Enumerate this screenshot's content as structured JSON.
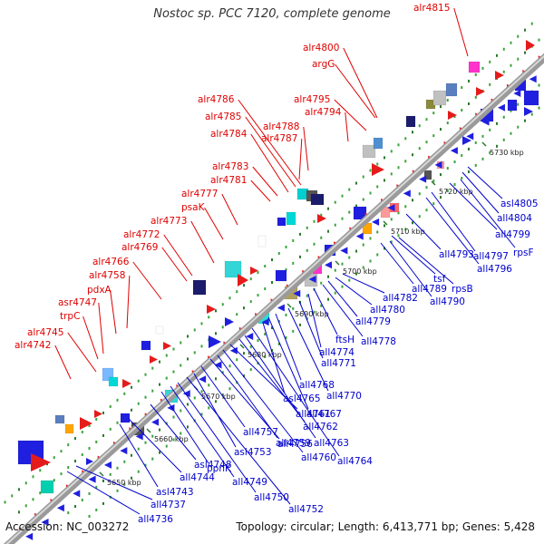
{
  "title": "Nostoc sp. PCC 7120, complete genome",
  "footer": {
    "accession": "Accession: NC_003272",
    "summary": "Topology: circular; Length: 6,413,771 bp; Genes: 5,428"
  },
  "colors": {
    "forward_label": "#e00000",
    "reverse_label": "#0000cc",
    "backbone": "#8a8a8a"
  },
  "scale_labels": [
    "5650 kbp",
    "5660 kbp",
    "5670 kbp",
    "5680 kbp",
    "5690 kbp",
    "5700 kbp",
    "5710 kbp",
    "5720 kbp",
    "5730 kbp"
  ],
  "forward_genes": [
    "alr4742",
    "alr4745",
    "trpC",
    "asr4747",
    "pdxA",
    "alr4758",
    "alr4766",
    "alr4769",
    "alr4772",
    "alr4773",
    "psaK",
    "alr4777",
    "alr4781",
    "alr4783",
    "alr4784",
    "alr4787",
    "alr4785",
    "alr4788",
    "alr4786",
    "alr4794",
    "alr4795",
    "argG",
    "alr4800",
    "alr4815"
  ],
  "reverse_genes": [
    "all4736",
    "all4737",
    "asl4743",
    "all4744",
    "asl4748",
    "ppnK",
    "all4749",
    "all4750",
    "all4752",
    "asl4753",
    "all4757",
    "all4756",
    "all4759",
    "all4760",
    "all4761",
    "all4762",
    "all4763",
    "all4764",
    "asl4765",
    "all4767",
    "all4768",
    "all4770",
    "all4771",
    "all4774",
    "ftsH",
    "all4778",
    "all4779",
    "all4780",
    "all4782",
    "tsf",
    "all4789",
    "rpsB",
    "all4790",
    "all4793",
    "all4796",
    "all4797",
    "rpsF",
    "all4799",
    "all4804",
    "asl4805"
  ]
}
